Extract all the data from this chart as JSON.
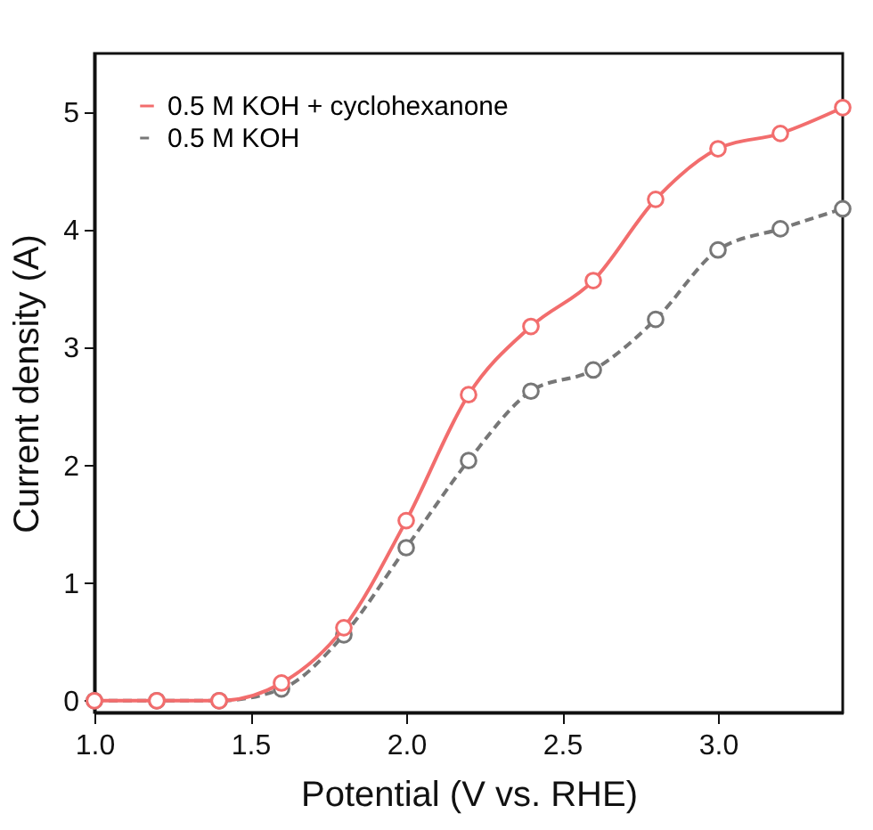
{
  "chart_data": {
    "type": "line",
    "xlabel": "Potential (V vs. RHE)",
    "ylabel": "Current density (A)",
    "x": [
      1.0,
      1.2,
      1.4,
      1.6,
      1.8,
      2.0,
      2.2,
      2.4,
      2.6,
      2.8,
      3.0,
      3.2,
      3.4
    ],
    "series": [
      {
        "name": "0.5 M KOH + cyclohexanone",
        "color": "#f26d6d",
        "line_style": "solid",
        "values": [
          0,
          0,
          0,
          0.15,
          0.62,
          1.53,
          2.6,
          3.18,
          3.57,
          4.26,
          4.69,
          4.82,
          5.04
        ]
      },
      {
        "name": "0.5 M KOH",
        "color": "#777777",
        "line_style": "dashed",
        "values": [
          0,
          0,
          0,
          0.1,
          0.56,
          1.3,
          2.04,
          2.63,
          2.81,
          3.24,
          3.83,
          4.01,
          4.18
        ]
      }
    ],
    "xlim": [
      1.0,
      3.4
    ],
    "ylim": [
      -0.1,
      5.5
    ],
    "xticks": [
      {
        "value": 1,
        "label": "1.0"
      },
      1.5,
      {
        "value": 2,
        "label": "2.0"
      },
      2.5,
      {
        "value": 3,
        "label": "3.0"
      }
    ],
    "yticks": [
      0,
      1,
      2,
      3,
      4,
      5
    ],
    "marker": "circle",
    "grid": false,
    "legend": "top left"
  }
}
